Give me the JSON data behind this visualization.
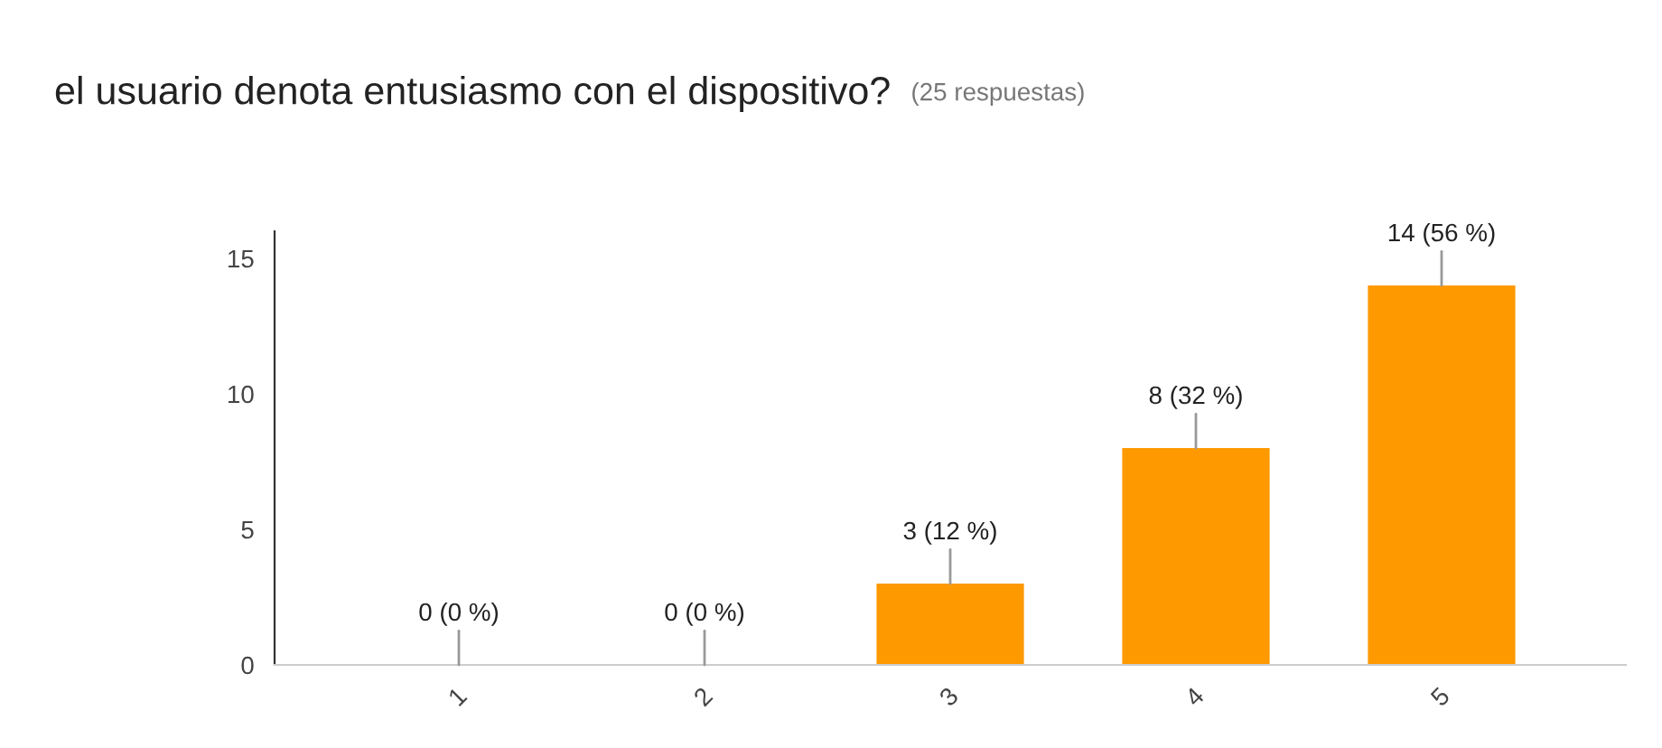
{
  "chart_data": {
    "type": "bar",
    "title": "el usuario denota entusiasmo con el dispositivo?",
    "subtitle": "(25 respuestas)",
    "categories": [
      "1",
      "2",
      "3",
      "4",
      "5"
    ],
    "values": [
      0,
      0,
      3,
      8,
      14
    ],
    "value_labels": [
      "0 (0 %)",
      "0 (0 %)",
      "3 (12 %)",
      "8 (32 %)",
      "14 (56 %)"
    ],
    "color": "#ff9900",
    "ylim": [
      0,
      16
    ],
    "yticks": [
      0,
      5,
      10,
      15
    ],
    "grid": false,
    "legend": false
  }
}
